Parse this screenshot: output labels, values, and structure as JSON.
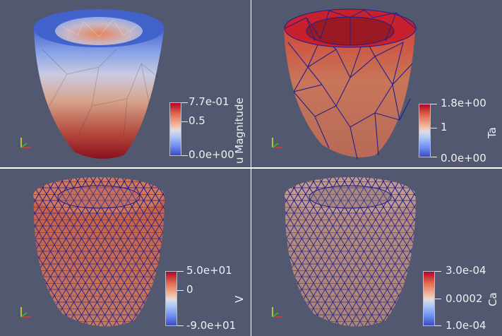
{
  "views": [
    {
      "id": "u",
      "colorbar": {
        "title": "u Magnitude",
        "ticks": [
          "7.7e-01",
          "0.5",
          "0.0e+00"
        ]
      }
    },
    {
      "id": "Ta",
      "colorbar": {
        "title": "Ta",
        "ticks": [
          "1.8e+00",
          "1",
          "0.0e+00"
        ]
      }
    },
    {
      "id": "V",
      "colorbar": {
        "title": "V",
        "ticks": [
          "5.0e+01",
          "0",
          "-9.0e+01"
        ]
      }
    },
    {
      "id": "Ca",
      "colorbar": {
        "title": "Ca",
        "ticks": [
          "3.0e-04",
          "0.0002",
          "1.0e-04"
        ]
      }
    }
  ],
  "colors": {
    "background": "#525870",
    "separator": "#ffffff",
    "mesh_edges": "#1c1c8c",
    "colormap_high": "#b40426",
    "colormap_mid": "#dddddd",
    "colormap_low": "#3b4cc0"
  },
  "orientation_axes": [
    "x-axis",
    "y-axis",
    "z-axis"
  ]
}
